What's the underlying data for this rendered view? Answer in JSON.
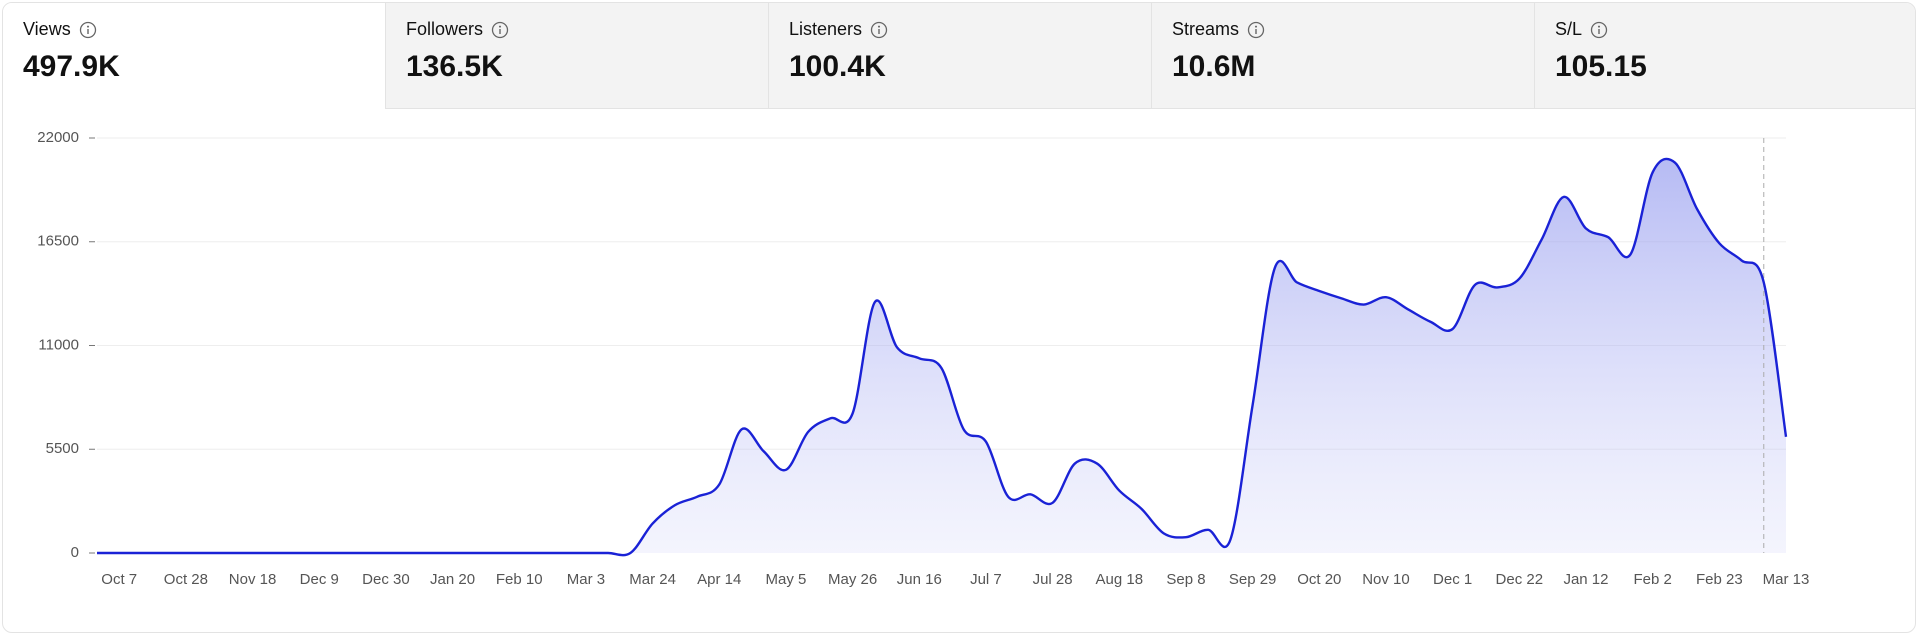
{
  "tabs": [
    {
      "label": "Views",
      "value": "497.9K"
    },
    {
      "label": "Followers",
      "value": "136.5K"
    },
    {
      "label": "Listeners",
      "value": "100.4K"
    },
    {
      "label": "Streams",
      "value": "10.6M"
    },
    {
      "label": "S/L",
      "value": "105.15"
    }
  ],
  "chart_data": {
    "type": "area",
    "color": "#1a22d6",
    "categories": [
      null,
      "Oct 7",
      null,
      null,
      "Oct 28",
      null,
      null,
      "Nov 18",
      null,
      null,
      "Dec 9",
      null,
      null,
      "Dec 30",
      null,
      null,
      "Jan 20",
      null,
      null,
      "Feb 10",
      null,
      null,
      "Mar 3",
      null,
      null,
      "Mar 24",
      null,
      null,
      "Apr 14",
      null,
      null,
      "May 5",
      null,
      null,
      "May 26",
      null,
      null,
      "Jun 16",
      null,
      null,
      "Jul 7",
      null,
      null,
      "Jul 28",
      null,
      null,
      "Aug 18",
      null,
      null,
      "Sep 8",
      null,
      null,
      "Sep 29",
      null,
      null,
      "Oct 20",
      null,
      null,
      "Nov 10",
      null,
      null,
      "Dec 1",
      null,
      null,
      "Dec 22",
      null,
      null,
      "Jan 12",
      null,
      null,
      "Feb 2",
      null,
      null,
      "Feb 23",
      null,
      null,
      "Mar 13"
    ],
    "values": [
      0,
      0,
      0,
      0,
      0,
      0,
      0,
      0,
      0,
      0,
      0,
      0,
      0,
      0,
      0,
      0,
      0,
      0,
      0,
      0,
      0,
      0,
      0,
      0,
      0,
      1560,
      2530,
      2980,
      3630,
      6550,
      5390,
      4410,
      6420,
      7140,
      7400,
      13300,
      10900,
      10320,
      9800,
      6550,
      5900,
      2980,
      3110,
      2660,
      4740,
      4740,
      3310,
      2340,
      1040,
      840,
      1230,
      710,
      7850,
      15120,
      14340,
      13890,
      13500,
      13170,
      13560,
      12910,
      12260,
      11880,
      14210,
      14080,
      14540,
      16610,
      18880,
      17200,
      16740,
      15830,
      20180,
      20700,
      18230,
      16420,
      15510,
      14340,
      6160
    ],
    "ylim": [
      0,
      22000
    ],
    "yticks": [
      0,
      5500,
      11000,
      16500,
      22000
    ],
    "grid": true
  }
}
